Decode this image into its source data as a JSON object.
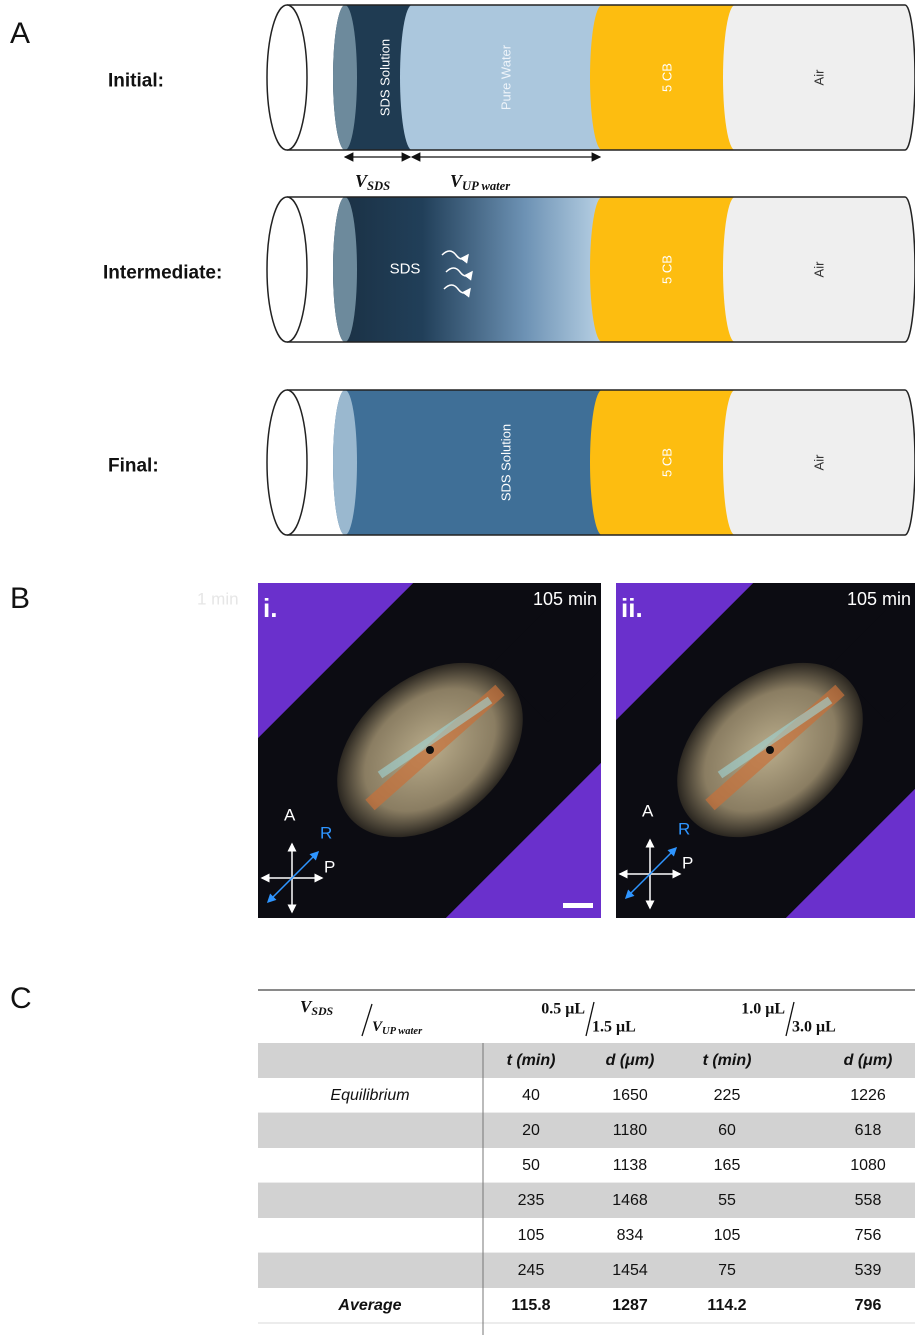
{
  "panel_labels": [
    "A",
    "B",
    "C"
  ],
  "panel_a": {
    "rows": [
      {
        "label": "Initial:",
        "segments": [
          "SDS Solution",
          "Pure Water",
          "5 CB",
          "Air"
        ]
      },
      {
        "label": "Intermediate:",
        "segments": [
          "SDS",
          "5 CB",
          "Air"
        ]
      },
      {
        "label": "Final:",
        "segments": [
          "SDS Solution",
          "5 CB",
          "Air"
        ]
      }
    ],
    "volumes": [
      {
        "symbol": "V",
        "subscript": "SDS"
      },
      {
        "symbol": "V",
        "subscript": "UP water"
      }
    ]
  },
  "panel_b": {
    "faded_label": "1 min",
    "images": [
      {
        "label": "i.",
        "time": "105 min"
      },
      {
        "label": "ii.",
        "time": "105 min"
      }
    ],
    "axes": [
      "A",
      "R",
      "P"
    ]
  },
  "table": {
    "corner": {
      "num": {
        "symbol": "V",
        "subscript": "SDS"
      },
      "den": {
        "symbol": "V",
        "subscript": "UP water"
      }
    },
    "groups": [
      {
        "num": "0.5 μL",
        "den": "1.5 μL"
      },
      {
        "num": "1.0 μL",
        "den": "3.0 μL"
      }
    ],
    "columns": [
      "t (min)",
      "d (μm)",
      "t (min)",
      "d (μm)"
    ],
    "rows": [
      {
        "label": "Equilibrium",
        "cells": [
          40,
          1650,
          225,
          1226
        ]
      },
      {
        "cells": [
          20,
          1180,
          60,
          618
        ]
      },
      {
        "cells": [
          50,
          1138,
          165,
          1080
        ]
      },
      {
        "cells": [
          235,
          1468,
          55,
          558
        ]
      },
      {
        "cells": [
          105,
          834,
          105,
          756
        ]
      },
      {
        "cells": [
          245,
          1454,
          75,
          539
        ]
      },
      {
        "label": "Average",
        "cells": [
          115.8,
          1287,
          114.2,
          796
        ]
      }
    ]
  }
}
